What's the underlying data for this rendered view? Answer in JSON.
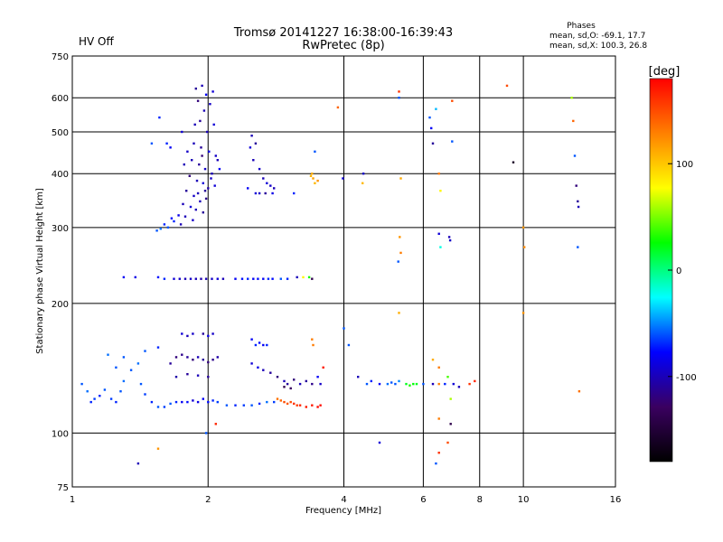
{
  "header": {
    "status": "HV Off",
    "status_color": "#cc0000",
    "title": "Tromsø 20141227 16:38:00-16:39:43",
    "subtitle": "RwPretec (8p)",
    "stats_heading": "Phases",
    "stats_line1": "mean, sd,O: -69.1, 17.7",
    "stats_line2": "mean, sd,X: 100.3, 26.8"
  },
  "colorbar": {
    "unit_label": "[deg]",
    "range": [
      -180,
      180
    ],
    "ticks": [
      {
        "value": 100,
        "label": "100"
      },
      {
        "value": 0,
        "label": "0"
      },
      {
        "value": -100,
        "label": "-100"
      }
    ],
    "colormap": [
      "#000000",
      "#3a0060",
      "#0000ff",
      "#00ffff",
      "#00ff00",
      "#ffff00",
      "#ff8000",
      "#ff0000"
    ]
  },
  "chart_data": {
    "type": "scatter",
    "title": "Tromsø 20141227 16:38:00-16:39:43",
    "subtitle": "RwPretec (8p)",
    "xlabel": "Frequency [MHz]",
    "ylabel": "Stationary phase Virtual Height [km]",
    "xscale": "log",
    "yscale": "log",
    "xlim": [
      1,
      16
    ],
    "ylim": [
      75,
      750
    ],
    "x_ticks": [
      {
        "value": 1,
        "label": "1"
      },
      {
        "value": 2,
        "label": "2"
      },
      {
        "value": 4,
        "label": "4"
      },
      {
        "value": 6,
        "label": "6"
      },
      {
        "value": 8,
        "label": "8"
      },
      {
        "value": 10,
        "label": "10"
      },
      {
        "value": 16,
        "label": "16"
      }
    ],
    "y_ticks": [
      {
        "value": 75,
        "label": "75"
      },
      {
        "value": 100,
        "label": "100"
      },
      {
        "value": 200,
        "label": "200"
      },
      {
        "value": 300,
        "label": "300"
      },
      {
        "value": 400,
        "label": "400"
      },
      {
        "value": 500,
        "label": "500"
      },
      {
        "value": 600,
        "label": "600"
      },
      {
        "value": 750,
        "label": "750"
      }
    ],
    "grid": true,
    "colorbar_label": "[deg]",
    "points": [
      [
        1.88,
        630,
        -110
      ],
      [
        1.94,
        640,
        -100
      ],
      [
        1.98,
        610,
        -80
      ],
      [
        2.05,
        620,
        -90
      ],
      [
        1.9,
        590,
        -120
      ],
      [
        1.96,
        560,
        -100
      ],
      [
        2.02,
        580,
        -95
      ],
      [
        1.92,
        530,
        -110
      ],
      [
        1.99,
        500,
        -100
      ],
      [
        2.06,
        520,
        -90
      ],
      [
        1.86,
        470,
        -100
      ],
      [
        1.93,
        460,
        -110
      ],
      [
        2.01,
        450,
        -85
      ],
      [
        2.08,
        440,
        -95
      ],
      [
        1.84,
        430,
        -100
      ],
      [
        1.91,
        420,
        -110
      ],
      [
        1.97,
        410,
        -95
      ],
      [
        2.04,
        400,
        -100
      ],
      [
        1.82,
        395,
        -120
      ],
      [
        1.89,
        385,
        -100
      ],
      [
        1.95,
        380,
        -90
      ],
      [
        2.0,
        370,
        -105
      ],
      [
        2.07,
        375,
        -90
      ],
      [
        1.79,
        365,
        -110
      ],
      [
        1.86,
        355,
        -95
      ],
      [
        1.92,
        345,
        -100
      ],
      [
        1.98,
        350,
        -115
      ],
      [
        1.76,
        340,
        -100
      ],
      [
        1.83,
        335,
        -90
      ],
      [
        1.88,
        330,
        -100
      ],
      [
        1.95,
        325,
        -110
      ],
      [
        1.72,
        320,
        -85
      ],
      [
        1.78,
        318,
        -100
      ],
      [
        1.85,
        312,
        -95
      ],
      [
        1.68,
        310,
        -70
      ],
      [
        1.74,
        305,
        -100
      ],
      [
        1.63,
        300,
        -60
      ],
      [
        1.57,
        298,
        -55
      ],
      [
        1.54,
        295,
        -60
      ],
      [
        1.6,
        305,
        -70
      ],
      [
        1.66,
        315,
        -75
      ],
      [
        1.5,
        470,
        -60
      ],
      [
        1.62,
        470,
        -70
      ],
      [
        1.65,
        460,
        -80
      ],
      [
        1.56,
        540,
        -70
      ],
      [
        1.75,
        500,
        -90
      ],
      [
        1.87,
        520,
        -100
      ],
      [
        1.8,
        450,
        -95
      ],
      [
        1.77,
        420,
        -100
      ],
      [
        1.94,
        440,
        -120
      ],
      [
        2.1,
        430,
        -100
      ],
      [
        2.12,
        410,
        -80
      ],
      [
        2.03,
        390,
        -95
      ],
      [
        1.97,
        365,
        -110
      ],
      [
        1.9,
        360,
        -100
      ],
      [
        2.5,
        490,
        -100
      ],
      [
        2.55,
        470,
        -110
      ],
      [
        2.48,
        460,
        -90
      ],
      [
        2.52,
        430,
        -100
      ],
      [
        2.6,
        410,
        -95
      ],
      [
        2.65,
        390,
        -100
      ],
      [
        2.7,
        380,
        -90
      ],
      [
        2.75,
        375,
        -95
      ],
      [
        2.8,
        370,
        -100
      ],
      [
        2.55,
        360,
        -90
      ],
      [
        2.6,
        360,
        -95
      ],
      [
        2.68,
        360,
        -110
      ],
      [
        2.78,
        360,
        -85
      ],
      [
        2.45,
        370,
        -80
      ],
      [
        3.1,
        360,
        -70
      ],
      [
        3.45,
        450,
        -60
      ],
      [
        3.4,
        400,
        110
      ],
      [
        3.42,
        390,
        115
      ],
      [
        3.45,
        380,
        105
      ],
      [
        3.5,
        385,
        120
      ],
      [
        3.38,
        395,
        108
      ],
      [
        3.88,
        570,
        140
      ],
      [
        3.98,
        390,
        -90
      ],
      [
        4.4,
        380,
        105
      ],
      [
        4.42,
        400,
        -95
      ],
      [
        5.3,
        600,
        -60
      ],
      [
        5.35,
        390,
        112
      ],
      [
        5.3,
        620,
        160
      ],
      [
        5.32,
        285,
        120
      ],
      [
        5.35,
        262,
        130
      ],
      [
        5.28,
        250,
        -60
      ],
      [
        6.2,
        540,
        -60
      ],
      [
        6.25,
        510,
        -80
      ],
      [
        6.3,
        470,
        -110
      ],
      [
        6.4,
        565,
        -40
      ],
      [
        6.5,
        400,
        130
      ],
      [
        6.55,
        365,
        80
      ],
      [
        6.5,
        290,
        -90
      ],
      [
        6.55,
        270,
        -20
      ],
      [
        6.85,
        285,
        -100
      ],
      [
        6.88,
        280,
        -95
      ],
      [
        6.95,
        590,
        150
      ],
      [
        6.95,
        475,
        -60
      ],
      [
        9.2,
        640,
        150
      ],
      [
        9.5,
        425,
        -160
      ],
      [
        10.0,
        300,
        120
      ],
      [
        10.05,
        270,
        125
      ],
      [
        12.8,
        600,
        60
      ],
      [
        12.9,
        530,
        140
      ],
      [
        13.0,
        440,
        -60
      ],
      [
        13.1,
        375,
        -120
      ],
      [
        13.2,
        345,
        -110
      ],
      [
        13.25,
        335,
        -100
      ],
      [
        13.2,
        270,
        -60
      ],
      [
        13.3,
        125,
        135
      ],
      [
        1.3,
        230,
        -80
      ],
      [
        1.38,
        230,
        -85
      ],
      [
        1.55,
        230,
        -75
      ],
      [
        1.6,
        228,
        -70
      ],
      [
        1.68,
        228,
        -90
      ],
      [
        1.73,
        228,
        -95
      ],
      [
        1.78,
        228,
        -100
      ],
      [
        1.83,
        228,
        -95
      ],
      [
        1.88,
        228,
        -100
      ],
      [
        1.93,
        228,
        -105
      ],
      [
        1.98,
        228,
        -100
      ],
      [
        2.04,
        228,
        -95
      ],
      [
        2.1,
        228,
        -90
      ],
      [
        2.16,
        228,
        -100
      ],
      [
        2.3,
        228,
        -80
      ],
      [
        2.38,
        228,
        -75
      ],
      [
        2.45,
        228,
        -70
      ],
      [
        2.52,
        228,
        -80
      ],
      [
        2.58,
        228,
        -75
      ],
      [
        2.65,
        228,
        -80
      ],
      [
        2.72,
        228,
        -70
      ],
      [
        2.78,
        228,
        -75
      ],
      [
        2.9,
        228,
        -60
      ],
      [
        3.0,
        228,
        -70
      ],
      [
        3.15,
        230,
        -100
      ],
      [
        3.25,
        230,
        80
      ],
      [
        3.35,
        230,
        30
      ],
      [
        3.4,
        228,
        -140
      ],
      [
        1.05,
        130,
        -60
      ],
      [
        1.08,
        125,
        -55
      ],
      [
        1.1,
        118,
        -70
      ],
      [
        1.12,
        120,
        -65
      ],
      [
        1.15,
        122,
        -70
      ],
      [
        1.18,
        126,
        -60
      ],
      [
        1.22,
        120,
        -65
      ],
      [
        1.25,
        118,
        -70
      ],
      [
        1.28,
        125,
        -60
      ],
      [
        1.3,
        132,
        -55
      ],
      [
        1.35,
        140,
        -60
      ],
      [
        1.4,
        145,
        -55
      ],
      [
        1.42,
        130,
        -60
      ],
      [
        1.45,
        123,
        -65
      ],
      [
        1.5,
        118,
        -70
      ],
      [
        1.55,
        115,
        -60
      ],
      [
        1.6,
        115,
        -65
      ],
      [
        1.65,
        117,
        -60
      ],
      [
        1.7,
        118,
        -70
      ],
      [
        1.75,
        118,
        -80
      ],
      [
        1.8,
        118,
        -75
      ],
      [
        1.85,
        119,
        -90
      ],
      [
        1.9,
        118,
        -85
      ],
      [
        1.95,
        120,
        -80
      ],
      [
        2.0,
        118,
        -75
      ],
      [
        2.05,
        119,
        -70
      ],
      [
        2.1,
        118,
        -65
      ],
      [
        2.2,
        116,
        -60
      ],
      [
        2.3,
        116,
        -70
      ],
      [
        2.4,
        116,
        -65
      ],
      [
        2.5,
        116,
        -60
      ],
      [
        2.6,
        117,
        -70
      ],
      [
        2.7,
        118,
        -55
      ],
      [
        2.8,
        118,
        -65
      ],
      [
        2.85,
        120,
        135
      ],
      [
        2.9,
        119,
        140
      ],
      [
        2.95,
        118,
        150
      ],
      [
        3.0,
        117,
        145
      ],
      [
        3.05,
        118,
        150
      ],
      [
        3.1,
        117,
        160
      ],
      [
        3.15,
        116,
        155
      ],
      [
        3.2,
        116,
        165
      ],
      [
        3.3,
        115,
        170
      ],
      [
        3.4,
        116,
        170
      ],
      [
        3.5,
        115,
        175
      ],
      [
        3.55,
        116,
        175
      ],
      [
        1.65,
        145,
        -110
      ],
      [
        1.7,
        150,
        -120
      ],
      [
        1.75,
        152,
        -115
      ],
      [
        1.8,
        150,
        -110
      ],
      [
        1.85,
        148,
        -120
      ],
      [
        1.9,
        150,
        -100
      ],
      [
        1.95,
        148,
        -110
      ],
      [
        2.0,
        146,
        -120
      ],
      [
        2.05,
        148,
        -115
      ],
      [
        2.1,
        150,
        -105
      ],
      [
        1.7,
        135,
        -105
      ],
      [
        1.8,
        137,
        -110
      ],
      [
        1.9,
        136,
        -100
      ],
      [
        2.0,
        135,
        -110
      ],
      [
        1.75,
        170,
        -90
      ],
      [
        1.8,
        168,
        -100
      ],
      [
        1.85,
        170,
        -95
      ],
      [
        1.95,
        170,
        -110
      ],
      [
        2.0,
        168,
        -85
      ],
      [
        2.05,
        170,
        -95
      ],
      [
        2.5,
        165,
        -80
      ],
      [
        2.55,
        160,
        -70
      ],
      [
        2.6,
        162,
        -75
      ],
      [
        2.65,
        160,
        -80
      ],
      [
        2.7,
        160,
        -70
      ],
      [
        2.5,
        145,
        -90
      ],
      [
        2.58,
        142,
        -85
      ],
      [
        2.65,
        140,
        -100
      ],
      [
        2.75,
        138,
        -110
      ],
      [
        2.85,
        135,
        -120
      ],
      [
        2.95,
        132,
        -100
      ],
      [
        3.0,
        130,
        -110
      ],
      [
        3.1,
        133,
        -120
      ],
      [
        3.2,
        130,
        -100
      ],
      [
        3.3,
        132,
        -110
      ],
      [
        3.4,
        130,
        -115
      ],
      [
        3.55,
        130,
        -95
      ],
      [
        2.95,
        128,
        -140
      ],
      [
        3.05,
        127,
        -130
      ],
      [
        3.5,
        135,
        -80
      ],
      [
        3.6,
        142,
        170
      ],
      [
        1.45,
        155,
        -60
      ],
      [
        1.55,
        158,
        -70
      ],
      [
        1.3,
        150,
        -60
      ],
      [
        1.2,
        152,
        -55
      ],
      [
        1.25,
        142,
        -60
      ],
      [
        4.1,
        160,
        -60
      ],
      [
        4.3,
        135,
        -100
      ],
      [
        4.5,
        130,
        -60
      ],
      [
        4.6,
        132,
        -70
      ],
      [
        4.8,
        130,
        -80
      ],
      [
        5.0,
        130,
        -55
      ],
      [
        5.1,
        131,
        -60
      ],
      [
        5.2,
        130,
        -60
      ],
      [
        5.3,
        132,
        -50
      ],
      [
        5.5,
        130,
        20
      ],
      [
        5.6,
        129,
        30
      ],
      [
        5.7,
        130,
        25
      ],
      [
        5.8,
        130,
        20
      ],
      [
        6.0,
        130,
        -60
      ],
      [
        6.3,
        130,
        -100
      ],
      [
        6.5,
        130,
        130
      ],
      [
        6.7,
        130,
        -70
      ],
      [
        7.0,
        130,
        -90
      ],
      [
        7.2,
        128,
        -100
      ],
      [
        7.6,
        130,
        160
      ],
      [
        7.8,
        132,
        165
      ],
      [
        6.3,
        148,
        110
      ],
      [
        6.5,
        142,
        130
      ],
      [
        6.8,
        135,
        40
      ],
      [
        6.9,
        120,
        60
      ],
      [
        6.5,
        108,
        130
      ],
      [
        6.9,
        105,
        -140
      ],
      [
        6.5,
        90,
        160
      ],
      [
        6.8,
        95,
        150
      ],
      [
        4.8,
        95,
        -90
      ],
      [
        6.4,
        85,
        -60
      ],
      [
        1.55,
        92,
        120
      ],
      [
        1.4,
        85,
        -100
      ],
      [
        1.98,
        100,
        -60
      ],
      [
        2.08,
        105,
        165
      ],
      [
        3.4,
        165,
        130
      ],
      [
        3.42,
        160,
        130
      ],
      [
        4.0,
        175,
        -60
      ],
      [
        5.3,
        190,
        110
      ],
      [
        10.0,
        190,
        120
      ]
    ]
  }
}
